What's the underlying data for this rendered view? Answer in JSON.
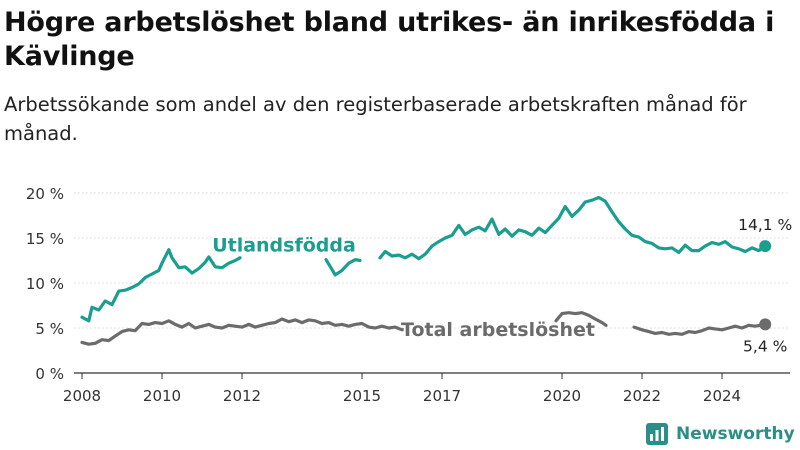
{
  "title": "Högre arbetslöshet bland utrikes- än inrikesfödda i Kävlinge",
  "subtitle": "Arbetssökande som andel av den registerbaserade arbetskraften månad för månad.",
  "brand": {
    "name": "Newsworthy",
    "icon": "newsworthy-logo-icon"
  },
  "colors": {
    "utlandsfodda": "#1a9e8f",
    "total": "#6b6b6b",
    "grid": "#d8d8d8",
    "axis": "#333333"
  },
  "chart_data": {
    "type": "line",
    "x_unit": "year",
    "xlim": [
      2007.8,
      2025.7
    ],
    "ylim": [
      0,
      20
    ],
    "grid": true,
    "y_ticks": [
      0,
      5,
      10,
      15,
      20
    ],
    "y_tick_labels": [
      "0 %",
      "5 %",
      "10 %",
      "15 %",
      "20 %"
    ],
    "x_ticks": [
      2008,
      2010,
      2012,
      2015,
      2017,
      2020,
      2022,
      2024
    ],
    "x_tick_labels": [
      "2008",
      "2010",
      "2012",
      "2015",
      "2017",
      "2020",
      "2022",
      "2024"
    ],
    "series": [
      {
        "name": "Utlandsfödda",
        "end_label": "14,1 %",
        "color": "#1a9e8f",
        "points": [
          [
            2008.0,
            6.2
          ],
          [
            2008.17,
            5.8
          ],
          [
            2008.25,
            7.3
          ],
          [
            2008.42,
            7.0
          ],
          [
            2008.58,
            8.0
          ],
          [
            2008.75,
            7.6
          ],
          [
            2008.92,
            9.1
          ],
          [
            2009.08,
            9.2
          ],
          [
            2009.25,
            9.5
          ],
          [
            2009.42,
            9.9
          ],
          [
            2009.58,
            10.6
          ],
          [
            2009.75,
            11.0
          ],
          [
            2009.92,
            11.4
          ],
          [
            2010.0,
            12.2
          ],
          [
            2010.17,
            13.7
          ],
          [
            2010.25,
            12.8
          ],
          [
            2010.42,
            11.7
          ],
          [
            2010.58,
            11.8
          ],
          [
            2010.75,
            11.1
          ],
          [
            2010.92,
            11.6
          ],
          [
            2011.08,
            12.3
          ],
          [
            2011.17,
            12.9
          ],
          [
            2011.33,
            11.8
          ],
          [
            2011.5,
            11.7
          ],
          [
            2011.67,
            12.2
          ],
          [
            2011.83,
            12.5
          ],
          [
            2011.95,
            12.8
          ],
          [
            2014.1,
            12.6
          ],
          [
            2014.25,
            11.5
          ],
          [
            2014.33,
            10.9
          ],
          [
            2014.5,
            11.4
          ],
          [
            2014.67,
            12.2
          ],
          [
            2014.83,
            12.6
          ],
          [
            2014.95,
            12.5
          ],
          [
            2015.45,
            12.8
          ],
          [
            2015.58,
            13.5
          ],
          [
            2015.75,
            13.0
          ],
          [
            2015.92,
            13.1
          ],
          [
            2016.08,
            12.8
          ],
          [
            2016.25,
            13.2
          ],
          [
            2016.42,
            12.7
          ],
          [
            2016.58,
            13.2
          ],
          [
            2016.75,
            14.1
          ],
          [
            2016.92,
            14.6
          ],
          [
            2017.08,
            15.0
          ],
          [
            2017.25,
            15.3
          ],
          [
            2017.42,
            16.4
          ],
          [
            2017.58,
            15.4
          ],
          [
            2017.75,
            15.9
          ],
          [
            2017.92,
            16.2
          ],
          [
            2018.08,
            15.8
          ],
          [
            2018.25,
            17.1
          ],
          [
            2018.42,
            15.4
          ],
          [
            2018.58,
            16.0
          ],
          [
            2018.75,
            15.2
          ],
          [
            2018.92,
            15.9
          ],
          [
            2019.08,
            15.7
          ],
          [
            2019.25,
            15.3
          ],
          [
            2019.42,
            16.1
          ],
          [
            2019.58,
            15.6
          ],
          [
            2019.75,
            16.4
          ],
          [
            2019.92,
            17.2
          ],
          [
            2020.08,
            18.5
          ],
          [
            2020.25,
            17.4
          ],
          [
            2020.42,
            18.1
          ],
          [
            2020.58,
            19.0
          ],
          [
            2020.75,
            19.2
          ],
          [
            2020.92,
            19.5
          ],
          [
            2021.08,
            19.1
          ],
          [
            2021.25,
            17.9
          ],
          [
            2021.42,
            16.8
          ],
          [
            2021.58,
            16.0
          ],
          [
            2021.75,
            15.3
          ],
          [
            2021.92,
            15.1
          ],
          [
            2022.08,
            14.6
          ],
          [
            2022.25,
            14.4
          ],
          [
            2022.42,
            13.9
          ],
          [
            2022.58,
            13.8
          ],
          [
            2022.75,
            13.9
          ],
          [
            2022.92,
            13.4
          ],
          [
            2023.08,
            14.2
          ],
          [
            2023.25,
            13.6
          ],
          [
            2023.42,
            13.6
          ],
          [
            2023.58,
            14.1
          ],
          [
            2023.75,
            14.5
          ],
          [
            2023.92,
            14.3
          ],
          [
            2024.08,
            14.6
          ],
          [
            2024.25,
            14.0
          ],
          [
            2024.42,
            13.8
          ],
          [
            2024.58,
            13.5
          ],
          [
            2024.75,
            13.9
          ],
          [
            2024.92,
            13.6
          ],
          [
            2025.08,
            14.1
          ]
        ]
      },
      {
        "name": "Total arbetslöshet",
        "end_label": "5,4 %",
        "color": "#6b6b6b",
        "points": [
          [
            2008.0,
            3.4
          ],
          [
            2008.17,
            3.2
          ],
          [
            2008.33,
            3.3
          ],
          [
            2008.5,
            3.7
          ],
          [
            2008.67,
            3.6
          ],
          [
            2008.83,
            4.1
          ],
          [
            2009.0,
            4.6
          ],
          [
            2009.17,
            4.8
          ],
          [
            2009.33,
            4.7
          ],
          [
            2009.5,
            5.5
          ],
          [
            2009.67,
            5.4
          ],
          [
            2009.83,
            5.6
          ],
          [
            2010.0,
            5.5
          ],
          [
            2010.17,
            5.8
          ],
          [
            2010.33,
            5.4
          ],
          [
            2010.5,
            5.1
          ],
          [
            2010.67,
            5.5
          ],
          [
            2010.83,
            5.0
          ],
          [
            2011.0,
            5.2
          ],
          [
            2011.17,
            5.4
          ],
          [
            2011.33,
            5.1
          ],
          [
            2011.5,
            5.0
          ],
          [
            2011.67,
            5.3
          ],
          [
            2011.83,
            5.2
          ],
          [
            2012.0,
            5.1
          ],
          [
            2012.17,
            5.4
          ],
          [
            2012.33,
            5.1
          ],
          [
            2012.5,
            5.3
          ],
          [
            2012.67,
            5.5
          ],
          [
            2012.83,
            5.6
          ],
          [
            2013.0,
            6.0
          ],
          [
            2013.17,
            5.7
          ],
          [
            2013.33,
            5.9
          ],
          [
            2013.5,
            5.6
          ],
          [
            2013.67,
            5.9
          ],
          [
            2013.83,
            5.8
          ],
          [
            2014.0,
            5.5
          ],
          [
            2014.17,
            5.6
          ],
          [
            2014.33,
            5.3
          ],
          [
            2014.5,
            5.4
          ],
          [
            2014.67,
            5.2
          ],
          [
            2014.83,
            5.4
          ],
          [
            2015.0,
            5.5
          ],
          [
            2015.17,
            5.1
          ],
          [
            2015.33,
            5.0
          ],
          [
            2015.5,
            5.2
          ],
          [
            2015.67,
            5.0
          ],
          [
            2015.83,
            5.1
          ],
          [
            2016.0,
            4.8
          ],
          [
            2016.17,
            4.9
          ],
          [
            2016.33,
            4.8
          ],
          [
            2019.85,
            5.8
          ],
          [
            2020.0,
            6.6
          ],
          [
            2020.17,
            6.7
          ],
          [
            2020.33,
            6.6
          ],
          [
            2020.5,
            6.7
          ],
          [
            2020.67,
            6.4
          ],
          [
            2020.83,
            6.0
          ],
          [
            2021.0,
            5.6
          ],
          [
            2021.1,
            5.3
          ],
          [
            2021.8,
            5.1
          ],
          [
            2022.0,
            4.8
          ],
          [
            2022.17,
            4.6
          ],
          [
            2022.33,
            4.4
          ],
          [
            2022.5,
            4.5
          ],
          [
            2022.67,
            4.3
          ],
          [
            2022.83,
            4.4
          ],
          [
            2023.0,
            4.3
          ],
          [
            2023.17,
            4.6
          ],
          [
            2023.33,
            4.5
          ],
          [
            2023.5,
            4.7
          ],
          [
            2023.67,
            5.0
          ],
          [
            2023.83,
            4.9
          ],
          [
            2024.0,
            4.8
          ],
          [
            2024.17,
            5.0
          ],
          [
            2024.33,
            5.2
          ],
          [
            2024.5,
            5.0
          ],
          [
            2024.67,
            5.3
          ],
          [
            2024.83,
            5.2
          ],
          [
            2025.08,
            5.4
          ]
        ]
      }
    ],
    "annotations": [
      {
        "text": "Utlandsfödda",
        "series": "Utlandsfödda"
      },
      {
        "text": "Total arbetslöshet",
        "series": "Total arbetslöshet"
      }
    ]
  }
}
